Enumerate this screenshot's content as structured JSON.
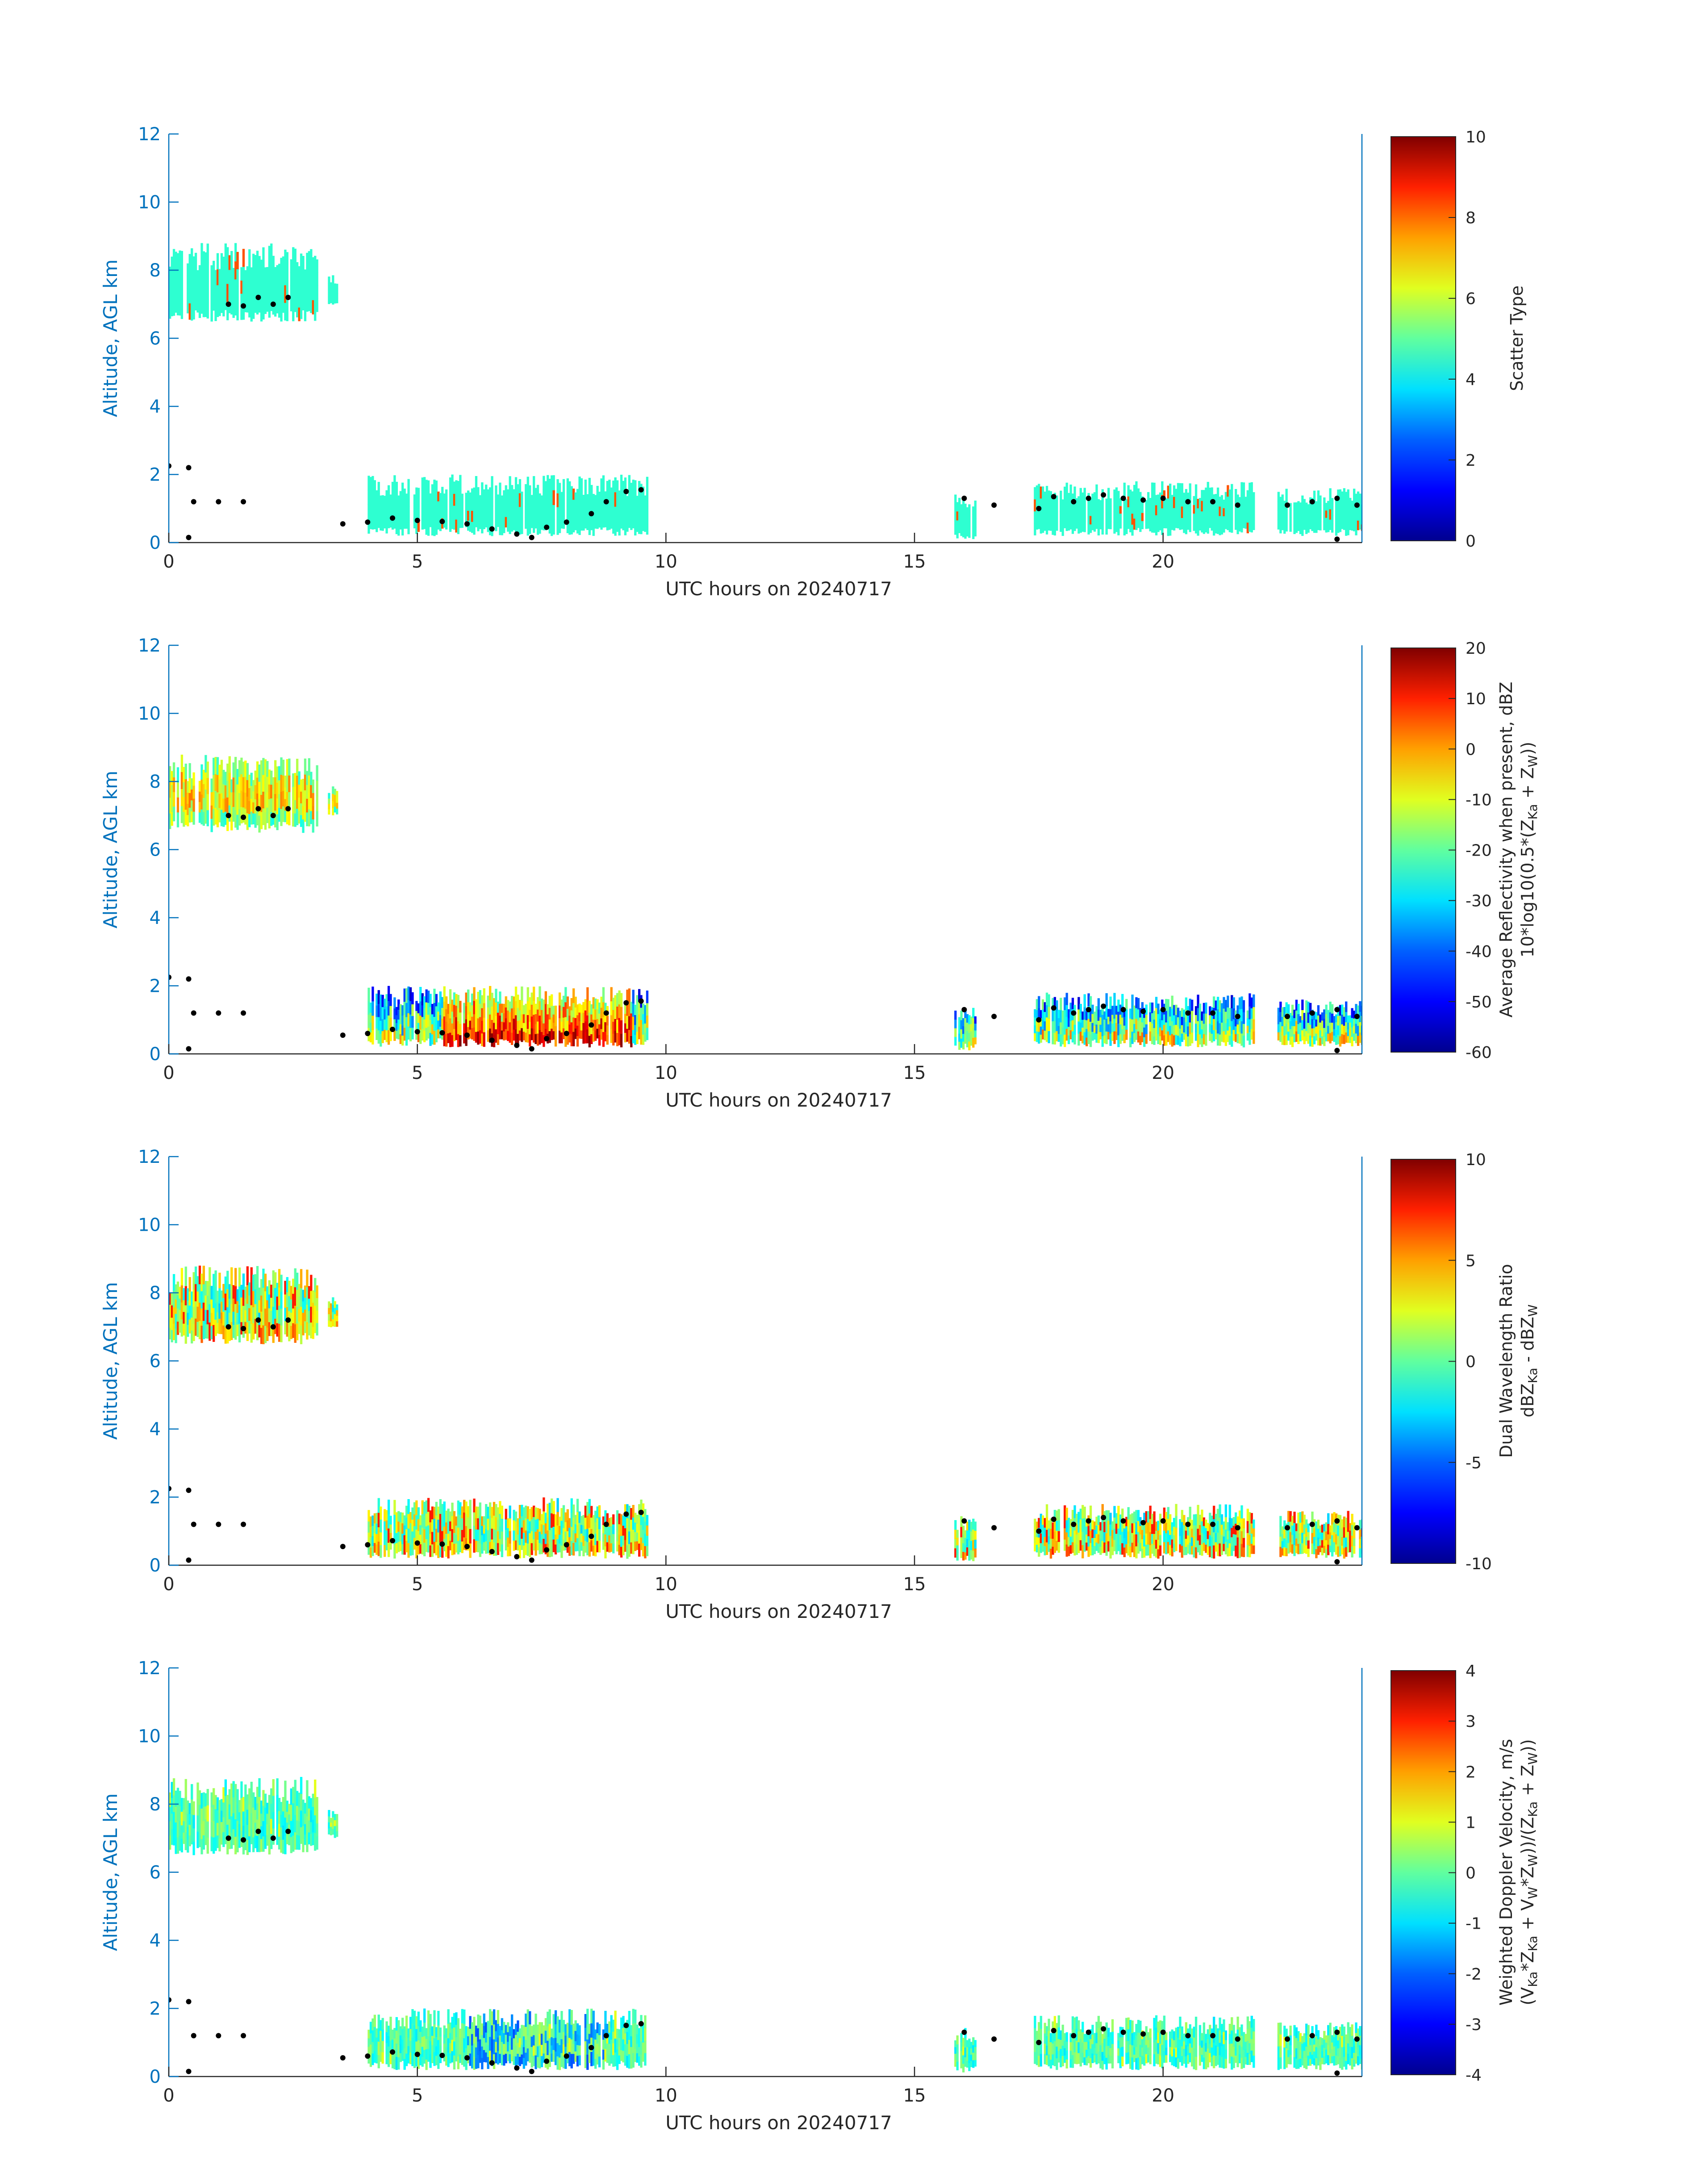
{
  "colors": {
    "axis_y": "#0072bd",
    "axis_x": "#262626",
    "boundary_marks": "#000000",
    "colormap": [
      "#00008f",
      "#0000ff",
      "#0080ff",
      "#00ffff",
      "#80ff80",
      "#ffff00",
      "#ff8000",
      "#ff0000",
      "#800000"
    ]
  },
  "panels": [
    {
      "id": "scatter-type",
      "ylabel": "Altitude, AGL km",
      "xlabel": "UTC hours on 20240717",
      "cbar_label_lines": [
        "Scatter Type"
      ],
      "cbar_ticks": [
        "0",
        "2",
        "4",
        "6",
        "8",
        "10"
      ],
      "cbar_range": [
        0,
        10
      ]
    },
    {
      "id": "avg-reflectivity",
      "ylabel": "Altitude, AGL km",
      "xlabel": "UTC hours on 20240717",
      "cbar_label_lines": [
        "Average Reflectivity when present, dBZ",
        "10*log10(0.5*(Z<sub>Ka</sub> + Z<sub>W</sub>))"
      ],
      "cbar_ticks": [
        "-60",
        "-50",
        "-40",
        "-30",
        "-20",
        "-10",
        "0",
        "10",
        "20"
      ],
      "cbar_range": [
        -60,
        20
      ]
    },
    {
      "id": "dual-wavelength-ratio",
      "ylabel": "Altitude, AGL km",
      "xlabel": "UTC hours on 20240717",
      "cbar_label_lines": [
        "Dual Wavelength Ratio",
        "dBZ<sub>Ka</sub> - dBZ<sub>W</sub>"
      ],
      "cbar_ticks": [
        "-10",
        "-5",
        "0",
        "5",
        "10"
      ],
      "cbar_range": [
        -10,
        10
      ]
    },
    {
      "id": "weighted-doppler-velocity",
      "ylabel": "Altitude, AGL km",
      "xlabel": "UTC hours on 20240717",
      "cbar_label_lines": [
        "Weighted Doppler Velocity, m/s",
        "(V<sub>Ka</sub>*Z<sub>Ka</sub> + V<sub>W</sub>*Z<sub>W</sub>))/(Z<sub>Ka</sub> + Z<sub>W</sub>))"
      ],
      "cbar_ticks": [
        "-4",
        "-3",
        "-2",
        "-1",
        "0",
        "1",
        "2",
        "3",
        "4"
      ],
      "cbar_range": [
        -4,
        4
      ]
    }
  ],
  "chart_data": {
    "type": "heatmap",
    "date": "20240717",
    "x_range": [
      0,
      24
    ],
    "y_range": [
      0,
      12
    ],
    "x_ticks": [
      "0",
      "5",
      "10",
      "15",
      "20"
    ],
    "y_ticks": [
      "0",
      "2",
      "4",
      "6",
      "8",
      "10",
      "12"
    ],
    "cloud_echoes": [
      {
        "x": [
          0.0,
          3.0
        ],
        "y": [
          6.5,
          8.8
        ],
        "scatter_type": 4
      },
      {
        "x": [
          3.2,
          3.4
        ],
        "y": [
          7.0,
          7.9
        ],
        "scatter_type": 4
      },
      {
        "x": [
          4.0,
          9.6
        ],
        "y": [
          0.2,
          2.0
        ],
        "scatter_type": 4
      },
      {
        "x": [
          15.8,
          16.2
        ],
        "y": [
          0.1,
          1.5
        ],
        "scatter_type": 4
      },
      {
        "x": [
          17.4,
          21.8
        ],
        "y": [
          0.2,
          1.8
        ],
        "scatter_type": 4
      },
      {
        "x": [
          22.3,
          24.0
        ],
        "y": [
          0.2,
          1.6
        ],
        "scatter_type": 4
      }
    ],
    "cloud_boundary": [
      {
        "x": 0.0,
        "y": 2.25
      },
      {
        "x": 0.4,
        "y": 2.2
      },
      {
        "x": 0.5,
        "y": 1.2
      },
      {
        "x": 1.0,
        "y": 1.2
      },
      {
        "x": 1.5,
        "y": 1.2
      },
      {
        "x": 0.4,
        "y": 0.15
      },
      {
        "x": 1.2,
        "y": 7.0
      },
      {
        "x": 1.5,
        "y": 6.95
      },
      {
        "x": 1.8,
        "y": 7.2
      },
      {
        "x": 2.1,
        "y": 7.0
      },
      {
        "x": 2.4,
        "y": 7.2
      },
      {
        "x": 3.5,
        "y": 0.55
      },
      {
        "x": 4.0,
        "y": 0.6
      },
      {
        "x": 4.5,
        "y": 0.72
      },
      {
        "x": 5.0,
        "y": 0.65
      },
      {
        "x": 5.5,
        "y": 0.62
      },
      {
        "x": 6.0,
        "y": 0.55
      },
      {
        "x": 6.5,
        "y": 0.4
      },
      {
        "x": 7.0,
        "y": 0.25
      },
      {
        "x": 7.3,
        "y": 0.15
      },
      {
        "x": 7.6,
        "y": 0.45
      },
      {
        "x": 8.0,
        "y": 0.6
      },
      {
        "x": 8.5,
        "y": 0.85
      },
      {
        "x": 8.8,
        "y": 1.2
      },
      {
        "x": 9.2,
        "y": 1.5
      },
      {
        "x": 9.5,
        "y": 1.55
      },
      {
        "x": 16.0,
        "y": 1.3
      },
      {
        "x": 16.6,
        "y": 1.1
      },
      {
        "x": 17.5,
        "y": 1.0
      },
      {
        "x": 17.8,
        "y": 1.35
      },
      {
        "x": 18.2,
        "y": 1.2
      },
      {
        "x": 18.5,
        "y": 1.3
      },
      {
        "x": 18.8,
        "y": 1.4
      },
      {
        "x": 19.2,
        "y": 1.3
      },
      {
        "x": 19.6,
        "y": 1.25
      },
      {
        "x": 20.0,
        "y": 1.3
      },
      {
        "x": 20.5,
        "y": 1.2
      },
      {
        "x": 21.0,
        "y": 1.2
      },
      {
        "x": 21.5,
        "y": 1.1
      },
      {
        "x": 22.5,
        "y": 1.1
      },
      {
        "x": 23.0,
        "y": 1.2
      },
      {
        "x": 23.5,
        "y": 1.3
      },
      {
        "x": 23.9,
        "y": 1.1
      },
      {
        "x": 23.5,
        "y": 0.1
      }
    ]
  }
}
